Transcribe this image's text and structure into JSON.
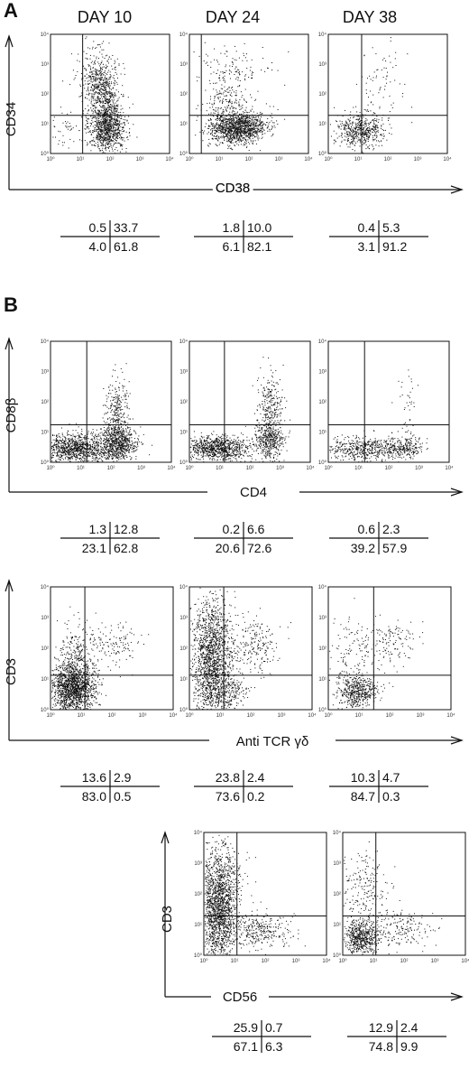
{
  "figure": {
    "panel_a": {
      "letter": "A",
      "day_labels": [
        "DAY 10",
        "DAY 24",
        "DAY 38"
      ],
      "y_label": "CD34",
      "x_label": "CD38",
      "plots": [
        {
          "name": "cd34-cd38-day10",
          "quadrants": [
            "0.5",
            "33.7",
            "4.0",
            "61.8"
          ]
        },
        {
          "name": "cd34-cd38-day24",
          "quadrants": [
            "1.8",
            "10.0",
            "6.1",
            "82.1"
          ]
        },
        {
          "name": "cd34-cd38-day38",
          "quadrants": [
            "0.4",
            "5.3",
            "3.1",
            "91.2"
          ]
        }
      ]
    },
    "panel_b": {
      "letter": "B",
      "row1": {
        "y_label": "CD8β",
        "x_label": "CD4",
        "plots": [
          {
            "name": "cd8b-cd4-day10",
            "quadrants": [
              "1.3",
              "12.8",
              "23.1",
              "62.8"
            ]
          },
          {
            "name": "cd8b-cd4-day24",
            "quadrants": [
              "0.2",
              "6.6",
              "20.6",
              "72.6"
            ]
          },
          {
            "name": "cd8b-cd4-day38",
            "quadrants": [
              "0.6",
              "2.3",
              "39.2",
              "57.9"
            ]
          }
        ]
      },
      "row2": {
        "y_label": "CD3",
        "x_label": "Anti TCR γδ",
        "plots": [
          {
            "name": "cd3-tcrgd-day10",
            "quadrants": [
              "13.6",
              "2.9",
              "83.0",
              "0.5"
            ]
          },
          {
            "name": "cd3-tcrgd-day24",
            "quadrants": [
              "23.8",
              "2.4",
              "73.6",
              "0.2"
            ]
          },
          {
            "name": "cd3-tcrgd-day38",
            "quadrants": [
              "10.3",
              "4.7",
              "84.7",
              "0.3"
            ]
          }
        ]
      },
      "row3": {
        "y_label": "CD3",
        "x_label": "CD56",
        "plots": [
          {
            "name": "cd3-cd56-day24",
            "quadrants": [
              "25.9",
              "0.7",
              "67.1",
              "6.3"
            ]
          },
          {
            "name": "cd3-cd56-day38",
            "quadrants": [
              "12.9",
              "2.4",
              "74.8",
              "9.9"
            ]
          }
        ]
      }
    },
    "tick_labels": [
      "10⁰",
      "10¹",
      "10²",
      "10³",
      "10⁴"
    ]
  }
}
